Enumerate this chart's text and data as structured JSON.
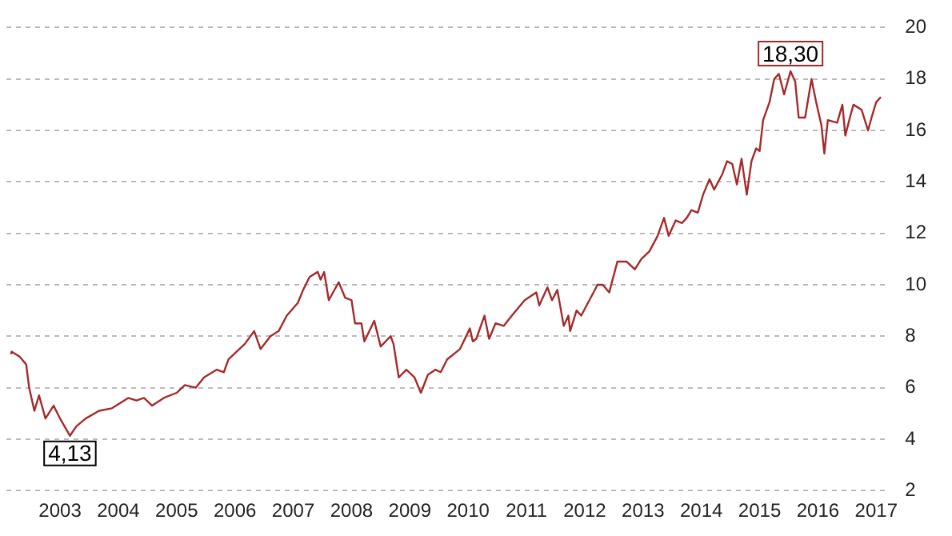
{
  "chart_data": {
    "type": "line",
    "x": [
      2002.16,
      2002.17,
      2002.31,
      2002.42,
      2002.47,
      2002.56,
      2002.64,
      2002.75,
      2002.89,
      2003.0,
      2003.17,
      2003.28,
      2003.44,
      2003.67,
      2003.89,
      2004.17,
      2004.31,
      2004.44,
      2004.58,
      2004.78,
      2005.0,
      2005.14,
      2005.33,
      2005.47,
      2005.69,
      2005.81,
      2005.89,
      2006.17,
      2006.33,
      2006.44,
      2006.61,
      2006.75,
      2006.89,
      2007.08,
      2007.17,
      2007.28,
      2007.42,
      2007.47,
      2007.53,
      2007.61,
      2007.78,
      2007.89,
      2008.0,
      2008.06,
      2008.17,
      2008.22,
      2008.39,
      2008.5,
      2008.67,
      2008.72,
      2008.81,
      2008.94,
      2009.08,
      2009.19,
      2009.31,
      2009.44,
      2009.53,
      2009.64,
      2009.86,
      2010.03,
      2010.08,
      2010.14,
      2010.28,
      2010.36,
      2010.47,
      2010.61,
      2010.75,
      2010.97,
      2011.17,
      2011.22,
      2011.36,
      2011.44,
      2011.53,
      2011.64,
      2011.72,
      2011.75,
      2011.86,
      2011.94,
      2012.08,
      2012.22,
      2012.31,
      2012.42,
      2012.56,
      2012.72,
      2012.86,
      2012.97,
      2013.11,
      2013.25,
      2013.36,
      2013.44,
      2013.56,
      2013.67,
      2013.75,
      2013.83,
      2013.94,
      2014.03,
      2014.14,
      2014.22,
      2014.36,
      2014.44,
      2014.53,
      2014.61,
      2014.69,
      2014.78,
      2014.86,
      2014.94,
      2015.0,
      2015.06,
      2015.17,
      2015.25,
      2015.33,
      2015.42,
      2015.53,
      2015.61,
      2015.67,
      2015.78,
      2015.89,
      2015.97,
      2016.06,
      2016.11,
      2016.17,
      2016.33,
      2016.42,
      2016.47,
      2016.56,
      2016.61,
      2016.75,
      2016.86,
      2016.92,
      2017.0,
      2017.08
    ],
    "values": [
      7.3,
      7.4,
      7.2,
      6.9,
      6.0,
      5.1,
      5.7,
      4.8,
      5.3,
      4.8,
      4.13,
      4.5,
      4.8,
      5.1,
      5.2,
      5.6,
      5.5,
      5.6,
      5.3,
      5.6,
      5.8,
      6.1,
      6.0,
      6.4,
      6.7,
      6.6,
      7.1,
      7.7,
      8.2,
      7.5,
      8.0,
      8.2,
      8.8,
      9.3,
      9.8,
      10.3,
      10.5,
      10.2,
      10.5,
      9.4,
      10.1,
      9.5,
      9.4,
      8.5,
      8.5,
      7.8,
      8.6,
      7.6,
      8.0,
      7.7,
      6.4,
      6.7,
      6.4,
      5.8,
      6.5,
      6.7,
      6.6,
      7.1,
      7.5,
      8.3,
      7.8,
      7.9,
      8.8,
      7.9,
      8.5,
      8.4,
      8.8,
      9.4,
      9.7,
      9.2,
      9.9,
      9.4,
      9.8,
      8.4,
      8.8,
      8.2,
      9.0,
      8.8,
      9.4,
      10.0,
      10.0,
      9.7,
      10.9,
      10.9,
      10.6,
      11.0,
      11.3,
      11.9,
      12.6,
      11.9,
      12.5,
      12.4,
      12.6,
      12.9,
      12.8,
      13.5,
      14.1,
      13.7,
      14.3,
      14.8,
      14.7,
      13.9,
      14.9,
      13.5,
      14.8,
      15.3,
      15.2,
      16.4,
      17.1,
      18.0,
      18.2,
      17.4,
      18.3,
      17.9,
      16.5,
      16.5,
      18.0,
      17.1,
      16.2,
      15.1,
      16.4,
      16.3,
      17.0,
      15.8,
      16.6,
      17.0,
      16.8,
      16.0,
      16.5,
      17.1,
      17.3
    ],
    "color": "#a52a2a",
    "xlim": [
      2002.08,
      2017.22
    ],
    "xticks": [
      2003,
      2004,
      2005,
      2006,
      2007,
      2008,
      2009,
      2010,
      2011,
      2012,
      2013,
      2014,
      2015,
      2016,
      2017
    ],
    "ylim": [
      2,
      20
    ],
    "yticks": [
      2,
      4,
      6,
      8,
      10,
      12,
      14,
      16,
      18,
      20
    ],
    "grid": "y",
    "legend": false,
    "marker": "none",
    "line_style": "solid",
    "annotations": [
      {
        "text": "4,13",
        "x": 2003.17,
        "y": 4.13
      },
      {
        "text": "18,30",
        "x": 2015.53,
        "y": 18.3
      }
    ]
  }
}
